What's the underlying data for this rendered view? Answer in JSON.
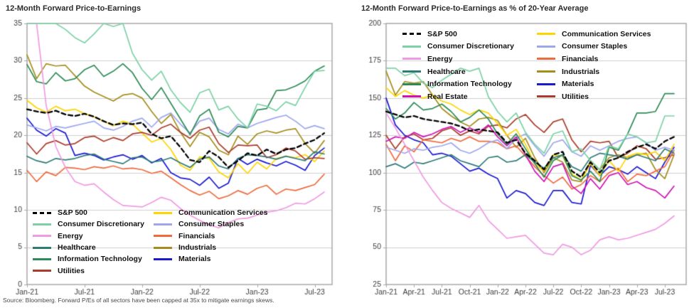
{
  "page": {
    "source_note": "Source: Bloomberg. Forward P/Es of all sectors have been capped at 35x to mitigate earnings skews."
  },
  "charts": [
    {
      "title": "12-Month Forward Price-to-Earnings",
      "chart_data": {
        "type": "line",
        "title": "12-Month Forward Price-to-Earnings",
        "xlabel": "",
        "ylabel": "",
        "ylim": [
          0,
          35
        ],
        "grid": "horizontal",
        "legend_position": "bottom-left-inside"
      },
      "y_axis": {
        "min": 0,
        "max": 35,
        "step": 5,
        "ticks": [
          0,
          5,
          10,
          15,
          20,
          25,
          30,
          35
        ]
      },
      "x_axis": {
        "tick_labels": [
          "Jan-21",
          "Jul-21",
          "Jan-22",
          "Jul-22",
          "Jan-23",
          "Jul-23"
        ]
      },
      "months": [
        "Jan-21",
        "Feb-21",
        "Mar-21",
        "Apr-21",
        "May-21",
        "Jun-21",
        "Jul-21",
        "Aug-21",
        "Sep-21",
        "Oct-21",
        "Nov-21",
        "Dec-21",
        "Jan-22",
        "Feb-22",
        "Mar-22",
        "Apr-22",
        "May-22",
        "Jun-22",
        "Jul-22",
        "Aug-22",
        "Sep-22",
        "Oct-22",
        "Nov-22",
        "Dec-22",
        "Jan-23",
        "Feb-23",
        "Mar-23",
        "Apr-23",
        "May-23",
        "Jun-23",
        "Jul-23",
        "Aug-23"
      ],
      "series": [
        {
          "name": "S&P 500",
          "color": "#000000",
          "dashed": true,
          "values": [
            23.5,
            23.2,
            23.0,
            23.3,
            22.8,
            22.6,
            22.9,
            22.5,
            21.9,
            21.4,
            21.6,
            21.5,
            21.7,
            20.2,
            19.6,
            19.9,
            18.4,
            16.7,
            16.4,
            17.9,
            17.1,
            15.7,
            16.6,
            17.6,
            17.3,
            18.1,
            17.5,
            18.1,
            18.3,
            18.9,
            19.4,
            20.3
          ]
        },
        {
          "name": "Consumer Discretionary",
          "color": "#7cd1a5",
          "dashed": false,
          "values": [
            35,
            35,
            35,
            35,
            34.2,
            33.1,
            32.4,
            33.6,
            35,
            34.6,
            35,
            31.0,
            28.8,
            27.4,
            28.6,
            26.1,
            24.4,
            23.1,
            25.7,
            26.2,
            23.4,
            23.9,
            22.2,
            21.0,
            24.2,
            23.9,
            23.3,
            24.5,
            24.0,
            26.4,
            28.6,
            28.7
          ]
        },
        {
          "name": "Energy",
          "color": "#f09ae1",
          "dashed": false,
          "values": [
            35,
            35,
            24.0,
            18.5,
            15.7,
            13.8,
            13.3,
            13.5,
            12.4,
            11.4,
            10.6,
            10.5,
            10.4,
            11.0,
            11.7,
            11.3,
            10.2,
            9.3,
            8.6,
            8.0,
            7.6,
            8.3,
            8.8,
            8.9,
            9.3,
            9.7,
            9.9,
            10.3,
            10.9,
            10.8,
            11.5,
            12.4
          ]
        },
        {
          "name": "Healthcare",
          "color": "#2e7b78",
          "dashed": false,
          "values": [
            17.2,
            16.6,
            16.3,
            16.9,
            16.7,
            16.9,
            17.3,
            17.5,
            16.8,
            16.5,
            16.2,
            17.0,
            17.1,
            16.4,
            16.6,
            17.0,
            16.3,
            15.7,
            16.8,
            17.1,
            15.9,
            15.5,
            16.9,
            17.4,
            17.3,
            17.1,
            16.8,
            17.2,
            16.9,
            16.6,
            17.8,
            17.5
          ]
        },
        {
          "name": "Information Technology",
          "color": "#2e8b57",
          "dashed": false,
          "values": [
            29.5,
            27.2,
            26.9,
            28.4,
            27.3,
            27.6,
            28.8,
            29.4,
            27.9,
            28.6,
            29.6,
            28.4,
            26.3,
            24.8,
            26.4,
            24.3,
            22.2,
            20.1,
            22.6,
            23.5,
            20.4,
            19.8,
            21.2,
            21.0,
            23.4,
            23.6,
            26.0,
            26.1,
            26.6,
            27.3,
            28.6,
            29.3
          ]
        },
        {
          "name": "Utilities",
          "color": "#ab3c2a",
          "dashed": false,
          "values": [
            19.0,
            17.5,
            18.9,
            19.3,
            18.7,
            18.9,
            19.7,
            19.9,
            19.2,
            19.7,
            19.3,
            20.2,
            20.4,
            20.0,
            21.0,
            21.5,
            20.4,
            19.6,
            20.7,
            21.1,
            18.9,
            17.7,
            18.7,
            18.6,
            18.7,
            17.0,
            17.4,
            18.3,
            17.9,
            16.8,
            17.0,
            16.9
          ]
        },
        {
          "name": "Communication Services",
          "color": "#ffd400",
          "dashed": false,
          "values": [
            24.7,
            23.7,
            23.1,
            23.9,
            23.3,
            23.5,
            22.9,
            22.5,
            21.9,
            21.3,
            21.9,
            21.5,
            20.3,
            19.1,
            19.6,
            18.1,
            16.0,
            15.3,
            17.1,
            16.9,
            15.1,
            14.3,
            16.2,
            14.9,
            16.4,
            15.5,
            16.9,
            17.2,
            17.0,
            17.4,
            16.5,
            17.9
          ]
        },
        {
          "name": "Consumer Staples",
          "color": "#9da7ee",
          "dashed": false,
          "values": [
            21.4,
            21.0,
            20.6,
            21.2,
            21.0,
            21.3,
            21.6,
            21.9,
            21.0,
            20.7,
            21.2,
            21.9,
            22.3,
            21.1,
            22.4,
            23.0,
            21.5,
            20.3,
            21.9,
            22.3,
            20.8,
            20.2,
            21.5,
            21.0,
            21.6,
            22.0,
            22.4,
            22.7,
            21.9,
            20.9,
            21.3,
            20.9
          ]
        },
        {
          "name": "Financials",
          "color": "#ee6b3d",
          "dashed": false,
          "values": [
            15.3,
            13.8,
            15.1,
            14.6,
            15.7,
            15.6,
            15.4,
            15.8,
            15.6,
            15.9,
            15.5,
            15.6,
            15.4,
            14.9,
            15.2,
            14.3,
            13.4,
            12.6,
            12.0,
            12.5,
            11.5,
            11.9,
            12.6,
            12.1,
            12.9,
            13.3,
            12.1,
            12.8,
            12.6,
            13.0,
            13.4,
            14.8
          ]
        },
        {
          "name": "Industrials",
          "color": "#a58e1e",
          "dashed": false,
          "values": [
            30.8,
            27.6,
            29.6,
            29.3,
            29.4,
            28.0,
            26.6,
            25.8,
            25.2,
            24.6,
            25.4,
            25.6,
            25.0,
            23.2,
            21.6,
            22.8,
            20.4,
            18.5,
            20.4,
            19.8,
            18.0,
            17.4,
            19.9,
            18.8,
            20.2,
            20.6,
            20.3,
            20.7,
            20.9,
            18.9,
            17.6,
            19.3
          ]
        },
        {
          "name": "Materials",
          "color": "#1a1ad2",
          "dashed": false,
          "values": [
            22.3,
            20.7,
            19.9,
            20.9,
            20.3,
            17.3,
            17.6,
            17.3,
            16.7,
            17.1,
            17.4,
            16.8,
            17.3,
            16.3,
            16.9,
            15.0,
            14.3,
            14.1,
            13.3,
            14.4,
            12.9,
            13.6,
            16.9,
            16.1,
            16.8,
            16.3,
            15.9,
            16.5,
            16.0,
            15.3,
            17.3,
            18.3
          ]
        }
      ],
      "legend": {
        "column1": [
          "S&P 500",
          "Consumer Discretionary",
          "Energy",
          "Healthcare",
          "Information Technology",
          "Utilities"
        ],
        "column2": [
          "Communication Services",
          "Consumer Staples",
          "Financials",
          "Industrials",
          "Materials"
        ]
      }
    },
    {
      "title": "12-Month Forward Price-to-Earnings as % of 20-Year Average",
      "chart_data": {
        "type": "line",
        "title": "12-Month Forward Price-to-Earnings as % of 20-Year Average",
        "xlabel": "",
        "ylabel": "",
        "ylim": [
          25,
          200
        ],
        "grid": "horizontal",
        "legend_position": "top-left-inside"
      },
      "y_axis": {
        "min": 25,
        "max": 200,
        "step": 25,
        "ticks": [
          25,
          50,
          75,
          100,
          125,
          150,
          175,
          200
        ]
      },
      "x_axis": {
        "tick_labels": [
          "Jan-21",
          "Apr-21",
          "Jul-21",
          "Oct-21",
          "Jan-22",
          "Apr-22",
          "Jul-22",
          "Oct-22",
          "Jan-23",
          "Apr-23",
          "Jul-23"
        ]
      },
      "months": [
        "Jan-21",
        "Feb-21",
        "Mar-21",
        "Apr-21",
        "May-21",
        "Jun-21",
        "Jul-21",
        "Aug-21",
        "Sep-21",
        "Oct-21",
        "Nov-21",
        "Dec-21",
        "Jan-22",
        "Feb-22",
        "Mar-22",
        "Apr-22",
        "May-22",
        "Jun-22",
        "Jul-22",
        "Aug-22",
        "Sep-22",
        "Oct-22",
        "Nov-22",
        "Dec-22",
        "Jan-23",
        "Feb-23",
        "Mar-23",
        "Apr-23",
        "May-23",
        "Jun-23",
        "Jul-23",
        "Aug-23"
      ],
      "series": [
        {
          "name": "S&P 500",
          "color": "#000000",
          "dashed": true,
          "values": [
            141,
            139,
            137,
            138,
            136,
            135,
            134,
            133,
            131,
            128,
            129,
            128,
            127,
            120,
            122,
            113,
            108,
            102,
            112,
            114,
            101,
            97,
            107,
            100,
            108,
            110,
            114,
            117,
            119,
            116,
            121,
            124
          ]
        },
        {
          "name": "Consumer Discretionary",
          "color": "#7cd1a5",
          "dashed": false,
          "values": [
            170,
            170,
            165,
            167,
            160,
            157,
            162,
            166,
            170,
            168,
            170,
            151,
            141,
            134,
            140,
            127,
            119,
            113,
            126,
            128,
            114,
            116,
            108,
            102,
            118,
            116,
            126,
            124,
            120,
            121,
            138,
            138
          ]
        },
        {
          "name": "Energy",
          "color": "#f09ae1",
          "dashed": false,
          "values": [
            140,
            130,
            119,
            108,
            97,
            88,
            80,
            76,
            73,
            70,
            78,
            68,
            62,
            56,
            57,
            58,
            52,
            46,
            45,
            52,
            50,
            45,
            48,
            55,
            57,
            55,
            56,
            58,
            60,
            62,
            66,
            71
          ]
        },
        {
          "name": "Healthcare",
          "color": "#2e7b78",
          "dashed": false,
          "values": [
            104,
            106,
            103,
            107,
            106,
            108,
            110,
            112,
            108,
            106,
            104,
            110,
            111,
            107,
            108,
            112,
            107,
            103,
            110,
            112,
            104,
            101,
            110,
            113,
            112,
            111,
            109,
            112,
            110,
            108,
            116,
            113
          ]
        },
        {
          "name": "Information Technology",
          "color": "#2e8b57",
          "dashed": false,
          "values": [
            143,
            136,
            140,
            147,
            142,
            143,
            146,
            141,
            134,
            137,
            142,
            136,
            126,
            119,
            126,
            116,
            106,
            97,
            108,
            112,
            98,
            95,
            101,
            94,
            117,
            115,
            126,
            140,
            140,
            141,
            153,
            153
          ]
        },
        {
          "name": "Real Estate",
          "color": "#d014b4",
          "dashed": false,
          "values": [
            121,
            124,
            123,
            127,
            124,
            126,
            129,
            131,
            127,
            130,
            127,
            132,
            124,
            118,
            124,
            112,
            101,
            94,
            104,
            106,
            91,
            86,
            96,
            89,
            98,
            100,
            92,
            94,
            90,
            88,
            83,
            91
          ]
        },
        {
          "name": "Communication Services",
          "color": "#ffd400",
          "dashed": false,
          "values": [
            157,
            151,
            155,
            152,
            150,
            152,
            148,
            146,
            142,
            139,
            142,
            140,
            133,
            125,
            129,
            119,
            106,
            101,
            112,
            111,
            99,
            95,
            106,
            98,
            108,
            101,
            111,
            113,
            112,
            114,
            108,
            119
          ]
        },
        {
          "name": "Consumer Staples",
          "color": "#9da7ee",
          "dashed": false,
          "values": [
            117,
            115,
            113,
            116,
            115,
            117,
            118,
            120,
            115,
            113,
            116,
            120,
            122,
            116,
            123,
            126,
            118,
            111,
            120,
            122,
            114,
            111,
            118,
            115,
            118,
            121,
            123,
            124,
            120,
            115,
            117,
            115
          ]
        },
        {
          "name": "Financials",
          "color": "#ee6b3d",
          "dashed": false,
          "values": [
            119,
            108,
            118,
            114,
            122,
            121,
            120,
            123,
            121,
            124,
            121,
            121,
            120,
            116,
            118,
            111,
            104,
            98,
            93,
            97,
            89,
            92,
            98,
            94,
            100,
            103,
            94,
            99,
            98,
            101,
            104,
            115
          ]
        },
        {
          "name": "Industrials",
          "color": "#a58e1e",
          "dashed": false,
          "values": [
            168,
            152,
            161,
            160,
            161,
            152,
            143,
            138,
            134,
            131,
            136,
            137,
            135,
            125,
            117,
            123,
            110,
            100,
            110,
            107,
            95,
            94,
            108,
            102,
            110,
            112,
            110,
            112,
            113,
            102,
            96,
            112
          ]
        },
        {
          "name": "Materials",
          "color": "#1a1ad2",
          "dashed": false,
          "values": [
            150,
            132,
            125,
            122,
            120,
            112,
            113,
            111,
            106,
            101,
            103,
            99,
            96,
            83,
            88,
            86,
            80,
            78,
            88,
            88,
            80,
            79,
            105,
            98,
            104,
            102,
            99,
            104,
            100,
            96,
            107,
            117
          ]
        },
        {
          "name": "Utilities",
          "color": "#ab3c2a",
          "dashed": false,
          "values": [
            125,
            116,
            124,
            126,
            122,
            123,
            128,
            130,
            125,
            128,
            126,
            131,
            132,
            130,
            136,
            139,
            132,
            127,
            134,
            136,
            122,
            114,
            121,
            120,
            121,
            110,
            113,
            118,
            116,
            109,
            110,
            112
          ]
        }
      ],
      "legend": {
        "column1": [
          "S&P 500",
          "Consumer Discretionary",
          "Energy",
          "Healthcare",
          "Information Technology",
          "Real Estate"
        ],
        "column2": [
          "Communication Services",
          "Consumer Staples",
          "Financials",
          "Industrials",
          "Materials",
          "Utilities"
        ]
      }
    }
  ]
}
